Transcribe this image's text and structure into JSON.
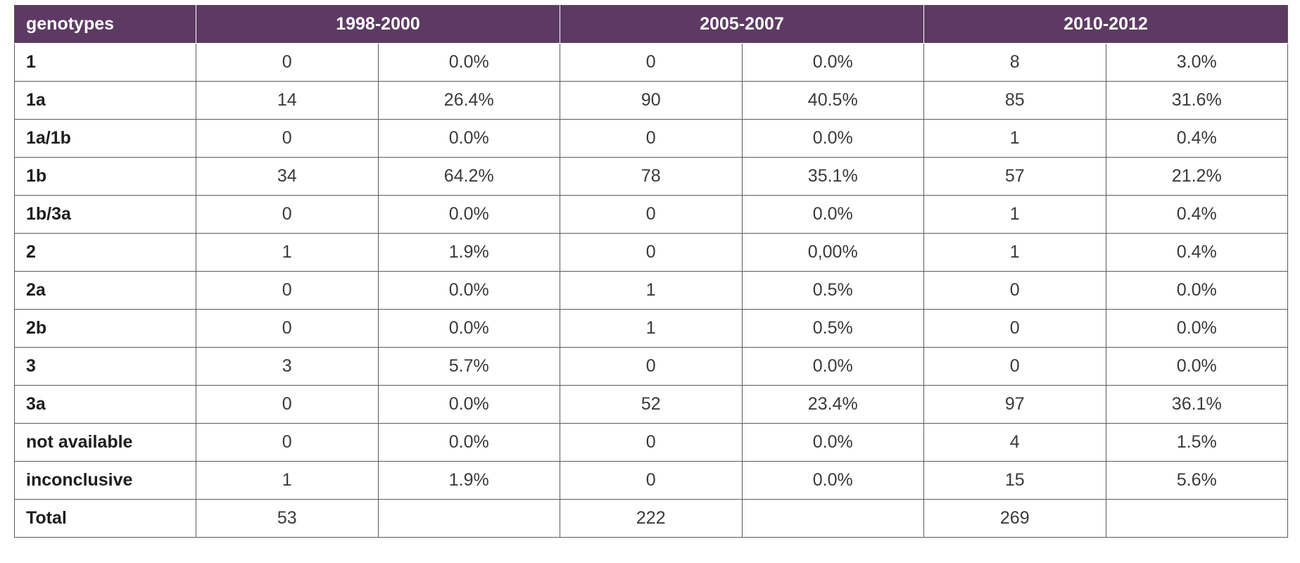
{
  "table": {
    "header": {
      "label": "genotypes",
      "periods": [
        "1998-2000",
        "2005-2007",
        "2010-2012"
      ]
    },
    "rows": [
      {
        "label": "1",
        "cells": [
          "0",
          "0.0%",
          "0",
          "0.0%",
          "8",
          "3.0%"
        ]
      },
      {
        "label": "1a",
        "cells": [
          "14",
          "26.4%",
          "90",
          "40.5%",
          "85",
          "31.6%"
        ]
      },
      {
        "label": "1a/1b",
        "cells": [
          "0",
          "0.0%",
          "0",
          "0.0%",
          "1",
          "0.4%"
        ]
      },
      {
        "label": "1b",
        "cells": [
          "34",
          "64.2%",
          "78",
          "35.1%",
          "57",
          "21.2%"
        ]
      },
      {
        "label": "1b/3a",
        "cells": [
          "0",
          "0.0%",
          "0",
          "0.0%",
          "1",
          "0.4%"
        ]
      },
      {
        "label": "2",
        "cells": [
          "1",
          "1.9%",
          "0",
          "0,00%",
          "1",
          "0.4%"
        ]
      },
      {
        "label": "2a",
        "cells": [
          "0",
          "0.0%",
          "1",
          "0.5%",
          "0",
          "0.0%"
        ]
      },
      {
        "label": "2b",
        "cells": [
          "0",
          "0.0%",
          "1",
          "0.5%",
          "0",
          "0.0%"
        ]
      },
      {
        "label": "3",
        "cells": [
          "3",
          "5.7%",
          "0",
          "0.0%",
          "0",
          "0.0%"
        ]
      },
      {
        "label": "3a",
        "cells": [
          "0",
          "0.0%",
          "52",
          "23.4%",
          "97",
          "36.1%"
        ]
      },
      {
        "label": "not available",
        "cells": [
          "0",
          "0.0%",
          "0",
          "0.0%",
          "4",
          "1.5%"
        ]
      },
      {
        "label": "inconclusive",
        "cells": [
          "1",
          "1.9%",
          "0",
          "0.0%",
          "15",
          "5.6%"
        ]
      },
      {
        "label": "Total",
        "cells": [
          "53",
          "",
          "222",
          "",
          "269",
          ""
        ]
      }
    ]
  }
}
